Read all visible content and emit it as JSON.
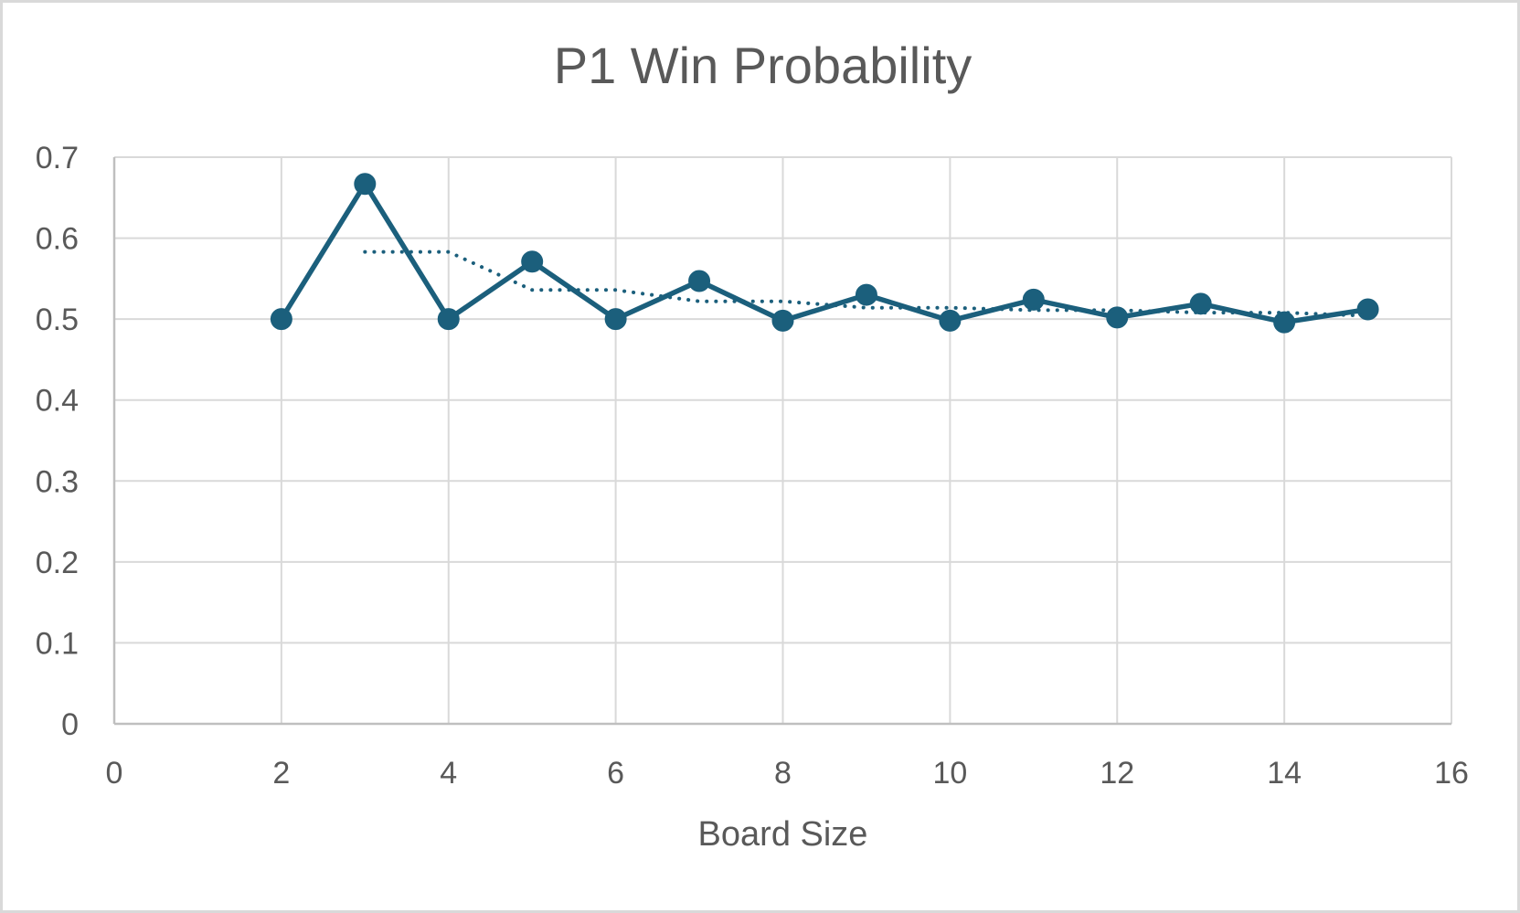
{
  "chart_data": {
    "type": "scatter",
    "title": "P1 Win Probability",
    "xlabel": "Board Size",
    "ylabel": "",
    "xlim": [
      0,
      16
    ],
    "ylim": [
      0,
      0.7
    ],
    "xticks": [
      0,
      2,
      4,
      6,
      8,
      10,
      12,
      14,
      16
    ],
    "yticks": [
      0,
      0.1,
      0.2,
      0.3,
      0.4,
      0.5,
      0.6,
      0.7
    ],
    "x_tick_labels": [
      "0",
      "2",
      "4",
      "6",
      "8",
      "10",
      "12",
      "14",
      "16"
    ],
    "y_tick_labels": [
      "0",
      "0.1",
      "0.2",
      "0.3",
      "0.4",
      "0.5",
      "0.6",
      "0.7"
    ],
    "grid": true,
    "legend": "none",
    "series": [
      {
        "style": "lines-and-markers",
        "color": "#1b5f7c",
        "x": [
          2,
          3,
          4,
          5,
          6,
          7,
          8,
          9,
          10,
          11,
          12,
          13,
          14,
          15
        ],
        "y": [
          0.5,
          0.667,
          0.5,
          0.571,
          0.5,
          0.547,
          0.498,
          0.53,
          0.498,
          0.524,
          0.502,
          0.519,
          0.496,
          0.512
        ]
      },
      {
        "style": "dotted-trendline",
        "color": "#1b5f7c",
        "x": [
          3,
          4,
          5,
          6,
          7,
          8,
          9,
          10,
          11,
          12,
          13,
          14,
          15
        ],
        "y": [
          0.583,
          0.583,
          0.536,
          0.536,
          0.522,
          0.522,
          0.514,
          0.514,
          0.511,
          0.511,
          0.508,
          0.508,
          0.504
        ]
      }
    ]
  }
}
